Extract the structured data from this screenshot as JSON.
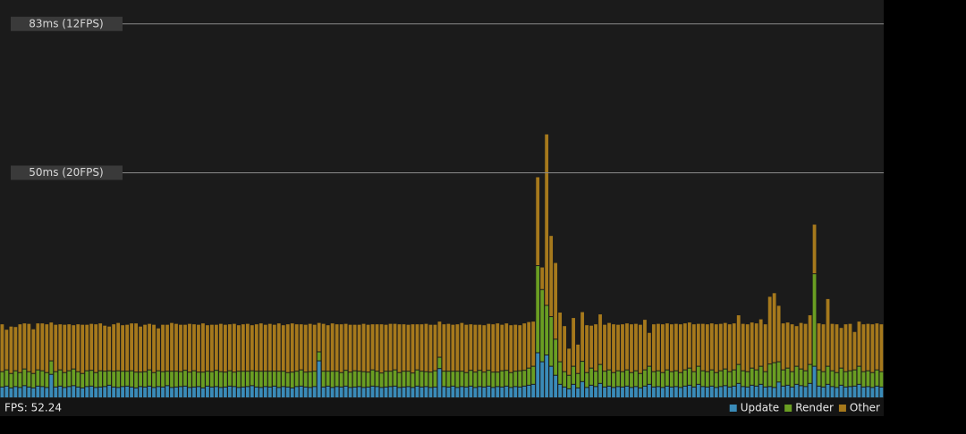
{
  "chart_data": {
    "type": "stacked-bar",
    "fps_label": "FPS: 52.24",
    "ylim": [
      0,
      88.3
    ],
    "yticks": [
      {
        "value": 50,
        "label": "50ms (20FPS)"
      },
      {
        "value": 83,
        "label": "83ms (12FPS)"
      }
    ],
    "series": [
      {
        "name": "Update",
        "color": "#3a8bb8",
        "values": [
          2.4,
          2.6,
          2.2,
          2.5,
          2.3,
          2.7,
          2.4,
          2.2,
          2.6,
          2.5,
          2.3,
          5.2,
          2.4,
          2.6,
          2.3,
          2.5,
          2.7,
          2.4,
          2.2,
          2.5,
          2.6,
          2.3,
          2.4,
          2.5,
          2.8,
          2.4,
          2.3,
          2.5,
          2.6,
          2.4,
          2.2,
          2.5,
          2.4,
          2.6,
          2.3,
          2.5,
          2.4,
          2.7,
          2.3,
          2.4,
          2.5,
          2.6,
          2.3,
          2.4,
          2.5,
          2.2,
          2.6,
          2.4,
          2.5,
          2.3,
          2.4,
          2.6,
          2.5,
          2.3,
          2.4,
          2.5,
          2.7,
          2.4,
          2.3,
          2.5,
          2.4,
          2.6,
          2.3,
          2.5,
          2.4,
          2.2,
          2.5,
          2.6,
          2.4,
          2.3,
          2.5,
          8.2,
          2.4,
          2.6,
          2.3,
          2.5,
          2.4,
          2.6,
          2.3,
          2.4,
          2.5,
          2.3,
          2.4,
          2.6,
          2.5,
          2.3,
          2.4,
          2.5,
          2.6,
          2.3,
          2.4,
          2.5,
          2.3,
          2.6,
          2.4,
          2.5,
          2.3,
          2.4,
          6.5,
          2.5,
          2.4,
          2.6,
          2.3,
          2.5,
          2.4,
          2.6,
          2.3,
          2.5,
          2.4,
          2.6,
          2.3,
          2.5,
          2.4,
          2.6,
          2.3,
          2.5,
          2.4,
          2.6,
          2.8,
          3.0,
          10.0,
          8.0,
          9.5,
          7.0,
          5.0,
          3.0,
          2.4,
          2.0,
          3.0,
          2.2,
          3.6,
          2.3,
          2.8,
          2.5,
          3.2,
          2.4,
          2.6,
          2.3,
          2.5,
          2.4,
          2.6,
          2.3,
          2.5,
          2.2,
          2.6,
          3.0,
          2.4,
          2.5,
          2.3,
          2.6,
          2.4,
          2.5,
          2.3,
          2.6,
          2.8,
          2.4,
          3.0,
          2.5,
          2.4,
          2.6,
          2.3,
          2.5,
          2.7,
          2.4,
          2.6,
          3.2,
          2.5,
          2.4,
          2.8,
          2.6,
          3.0,
          2.4,
          2.5,
          2.3,
          3.5,
          2.6,
          2.8,
          2.4,
          3.0,
          2.7,
          2.5,
          3.2,
          7.0,
          2.6,
          2.4,
          3.0,
          2.5,
          2.3,
          2.8,
          2.4,
          2.5,
          2.6,
          3.0,
          2.4,
          2.5,
          2.3,
          2.6,
          2.4
        ]
      },
      {
        "name": "Render",
        "color": "#6a9e22",
        "values": [
          3.4,
          3.6,
          3.2,
          3.5,
          3.3,
          3.7,
          3.4,
          3.2,
          3.6,
          3.5,
          3.3,
          3.0,
          3.4,
          3.6,
          3.3,
          3.5,
          3.7,
          3.4,
          3.2,
          3.5,
          3.5,
          3.3,
          3.6,
          3.4,
          3.2,
          3.5,
          3.7,
          3.4,
          3.3,
          3.6,
          3.5,
          3.2,
          3.4,
          3.6,
          3.3,
          3.5,
          3.4,
          3.2,
          3.6,
          3.5,
          3.3,
          3.5,
          3.4,
          3.6,
          3.2,
          3.5,
          3.3,
          3.4,
          3.6,
          3.5,
          3.3,
          3.4,
          3.2,
          3.6,
          3.5,
          3.4,
          3.3,
          3.5,
          3.6,
          3.4,
          3.5,
          3.3,
          3.6,
          3.4,
          3.2,
          3.5,
          3.4,
          3.6,
          3.3,
          3.5,
          3.4,
          2.0,
          3.5,
          3.3,
          3.6,
          3.4,
          3.2,
          3.5,
          3.4,
          3.6,
          3.4,
          3.5,
          3.3,
          3.6,
          3.4,
          3.2,
          3.5,
          3.4,
          3.6,
          3.3,
          3.5,
          3.4,
          3.2,
          3.6,
          3.5,
          3.3,
          3.4,
          3.6,
          2.5,
          3.4,
          3.5,
          3.3,
          3.6,
          3.4,
          3.2,
          3.5,
          3.4,
          3.6,
          3.3,
          3.5,
          3.4,
          3.2,
          3.6,
          3.5,
          3.3,
          3.4,
          3.6,
          3.5,
          3.8,
          4.0,
          19.3,
          16.0,
          11.0,
          11.0,
          8.0,
          5.0,
          3.4,
          3.0,
          4.0,
          3.2,
          4.5,
          3.3,
          3.8,
          3.4,
          4.2,
          3.5,
          3.6,
          3.3,
          3.5,
          3.4,
          3.6,
          3.3,
          3.5,
          3.2,
          3.6,
          4.0,
          3.4,
          3.5,
          3.3,
          3.6,
          3.4,
          3.5,
          3.3,
          3.6,
          3.8,
          3.4,
          4.0,
          3.5,
          3.4,
          3.6,
          3.3,
          3.5,
          3.7,
          3.4,
          3.6,
          4.2,
          3.5,
          3.4,
          3.8,
          3.6,
          4.0,
          3.4,
          5.0,
          5.5,
          4.5,
          3.6,
          3.8,
          3.4,
          4.0,
          3.7,
          3.5,
          4.2,
          20.5,
          3.6,
          3.4,
          4.0,
          3.5,
          3.3,
          3.8,
          3.4,
          3.5,
          3.6,
          4.0,
          3.4,
          3.5,
          3.3,
          3.6,
          3.4
        ]
      },
      {
        "name": "Other",
        "color": "#a6791c",
        "values": [
          10.6,
          9.0,
          10.5,
          9.8,
          10.8,
          10.2,
          10.7,
          9.9,
          10.4,
          10.6,
          10.8,
          8.6,
          10.5,
          10.2,
          10.7,
          10.4,
          9.8,
          10.6,
          10.9,
          10.3,
          10.4,
          10.8,
          10.6,
          10.2,
          9.9,
          10.5,
          10.7,
          10.3,
          10.4,
          10.6,
          10.9,
          10.2,
          10.5,
          10.3,
          10.7,
          9.5,
          10.5,
          10.4,
          10.8,
          10.6,
          10.5,
          10.2,
          10.8,
          10.4,
          10.6,
          10.9,
          10.3,
          10.5,
          10.2,
          10.7,
          10.6,
          10.4,
          10.8,
          10.3,
          10.5,
          10.6,
          10.2,
          10.5,
          10.7,
          10.4,
          10.6,
          10.4,
          10.7,
          10.3,
          10.8,
          10.9,
          10.5,
          10.2,
          10.6,
          10.7,
          10.4,
          6.5,
          10.6,
          10.3,
          10.7,
          10.5,
          10.8,
          10.4,
          10.6,
          10.3,
          10.4,
          10.7,
          10.6,
          10.2,
          10.5,
          10.9,
          10.4,
          10.6,
          10.3,
          10.8,
          10.5,
          10.4,
          10.9,
          10.2,
          10.5,
          10.7,
          10.6,
          10.3,
          8.0,
          10.5,
          10.6,
          10.4,
          10.5,
          10.8,
          10.7,
          10.3,
          10.6,
          10.2,
          10.5,
          10.4,
          10.7,
          10.9,
          10.3,
          10.5,
          10.6,
          10.4,
          10.2,
          10.5,
          10.3,
          10.0,
          19.7,
          5.0,
          38.0,
          18.0,
          17.0,
          11.0,
          10.2,
          6.0,
          10.8,
          6.5,
          11.0,
          10.6,
          9.5,
          10.5,
          11.2,
          10.4,
          10.5,
          10.8,
          10.3,
          10.6,
          10.4,
          10.8,
          10.5,
          10.9,
          11.2,
          7.5,
          10.6,
          10.5,
          10.8,
          10.4,
          10.6,
          10.5,
          10.8,
          10.4,
          10.2,
          10.6,
          9.5,
          10.5,
          10.6,
          10.4,
          10.8,
          10.5,
          10.3,
          10.6,
          10.4,
          11.0,
          10.5,
          10.6,
          10.2,
          10.4,
          10.5,
          10.6,
          15.0,
          15.5,
          12.5,
          10.4,
          10.2,
          10.6,
          9.0,
          10.3,
          10.5,
          11.0,
          11.0,
          10.4,
          10.6,
          15.0,
          10.5,
          10.8,
          9.0,
          10.6,
          10.5,
          8.5,
          10.0,
          10.6,
          10.5,
          10.8,
          10.4,
          10.6
        ]
      }
    ]
  }
}
